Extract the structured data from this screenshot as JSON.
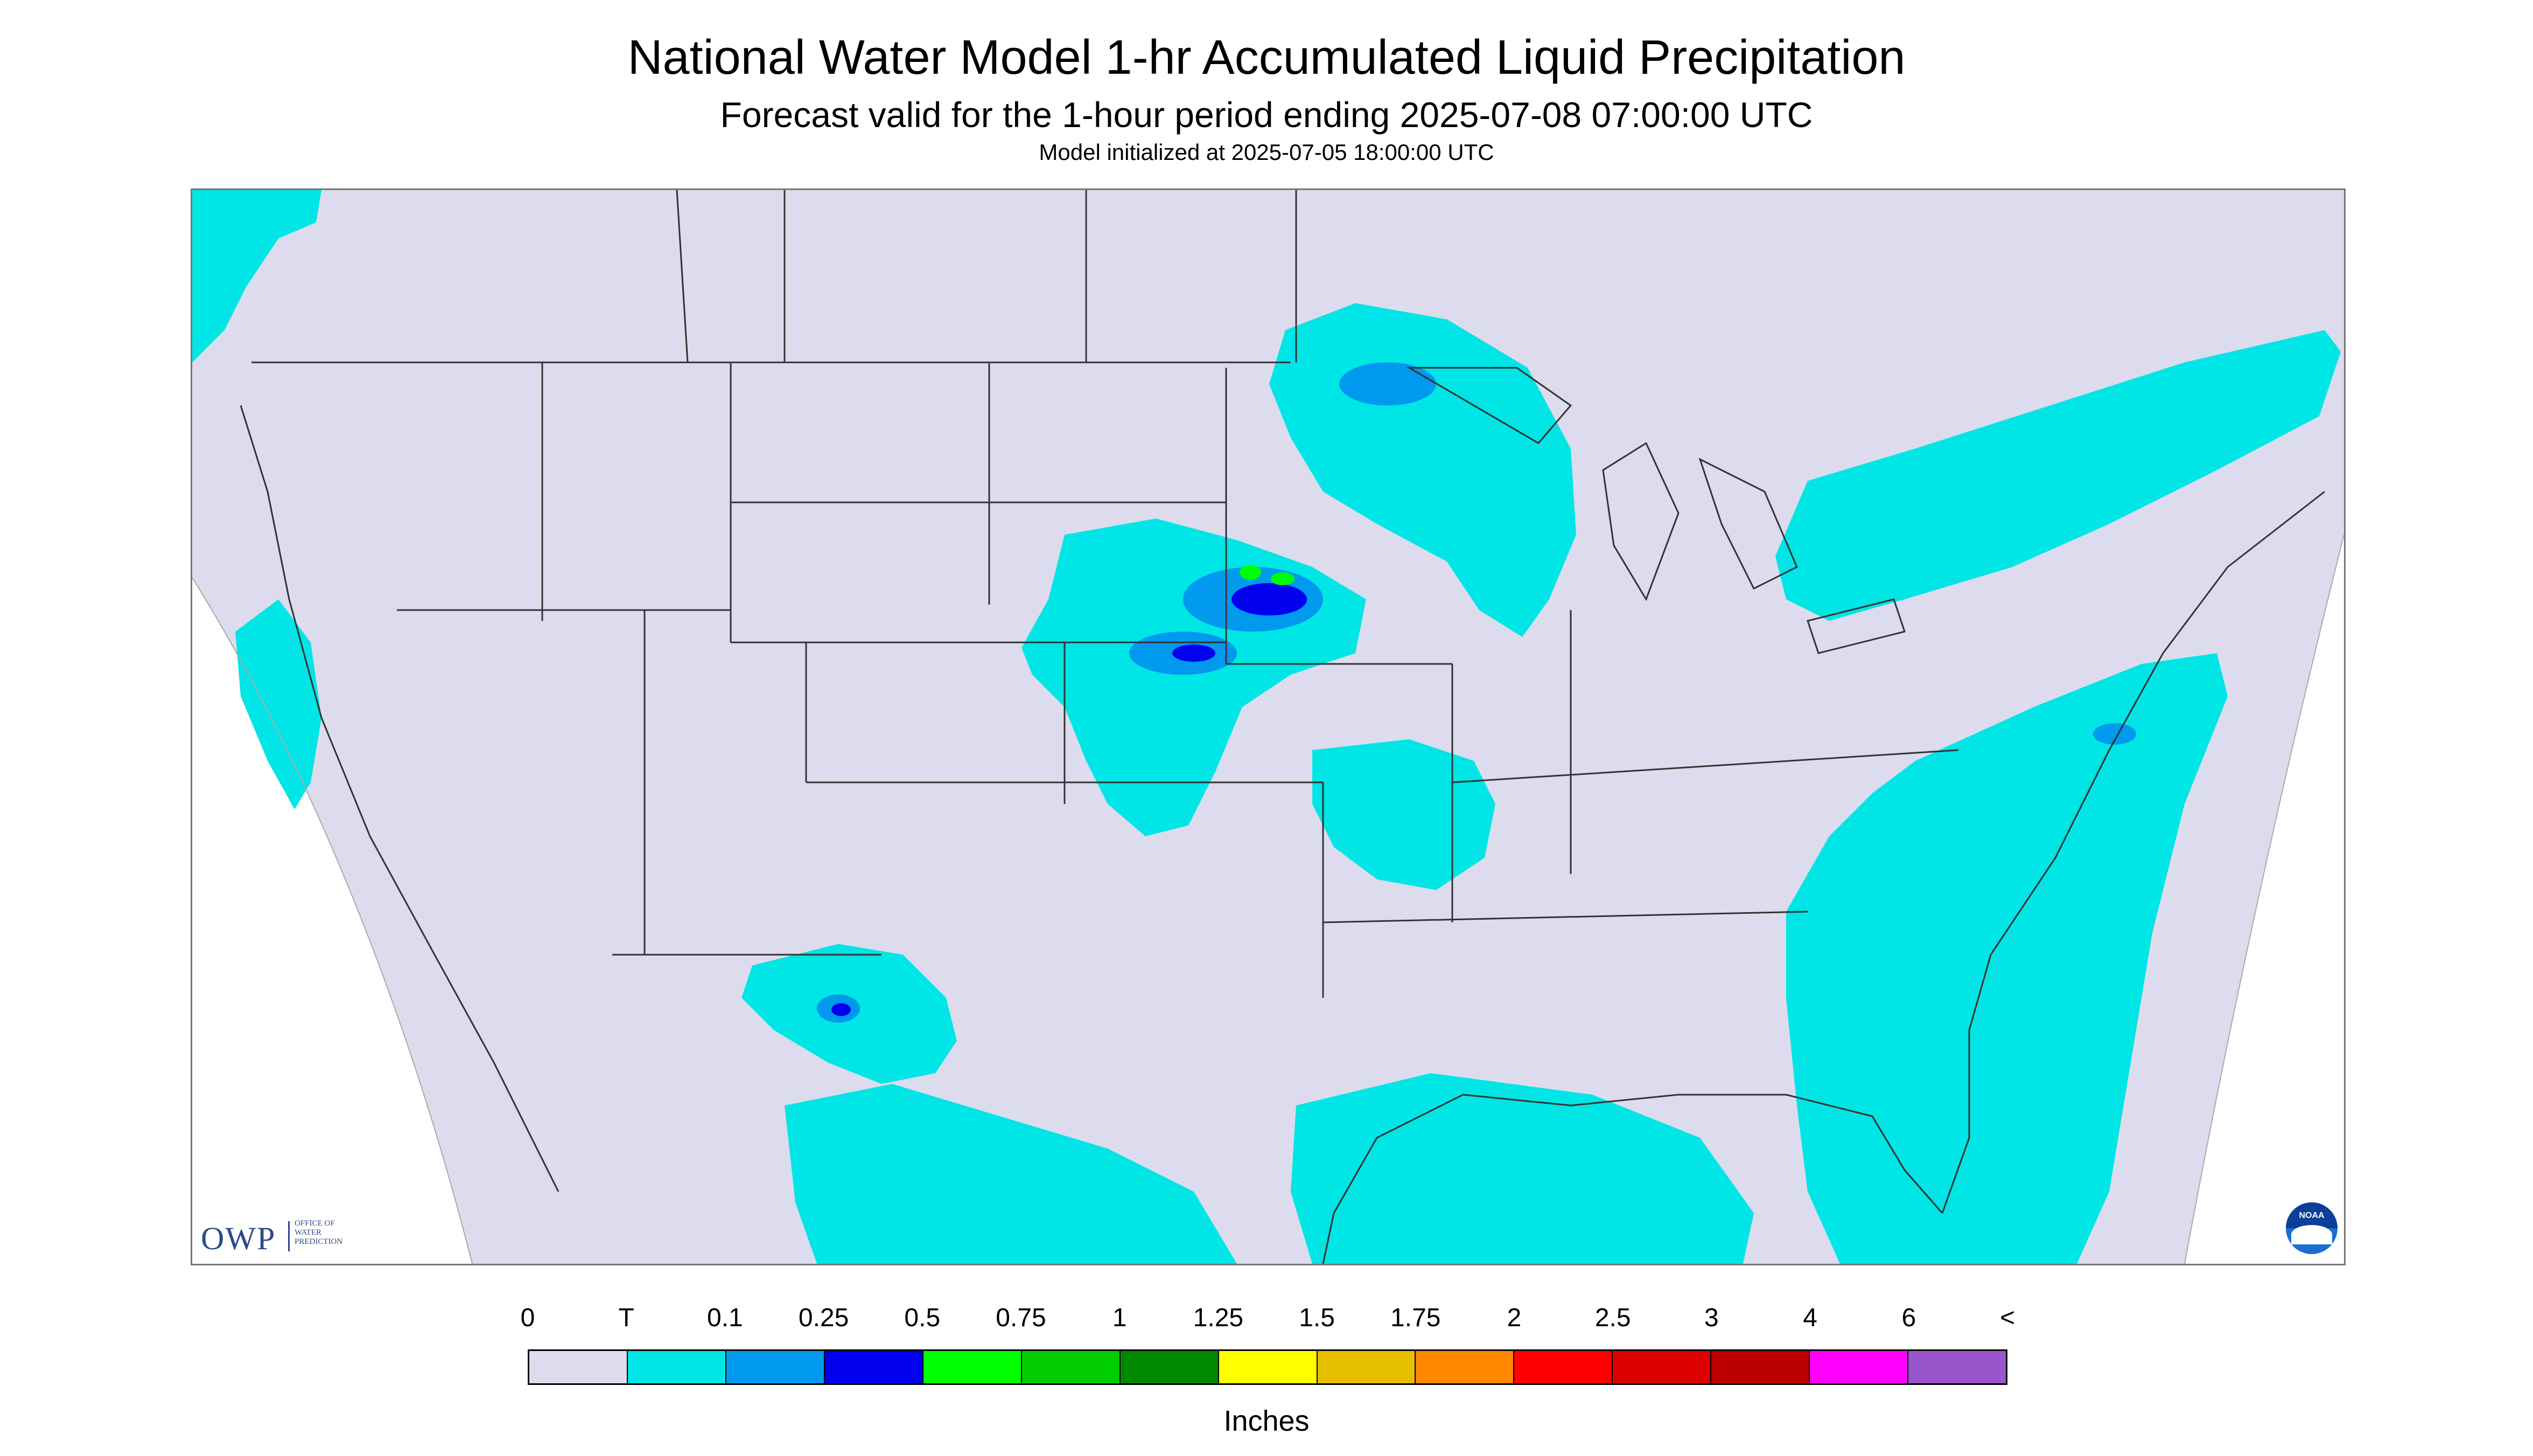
{
  "header": {
    "title": "National Water Model 1-hr Accumulated Liquid Precipitation",
    "subtitle": "Forecast valid for the 1-hour period ending 2025-07-08 07:00:00 UTC",
    "init": "Model initialized at 2025-07-05 18:00:00 UTC"
  },
  "map": {
    "background_color": "#dcdcee",
    "outside_color": "#ffffff",
    "boundary_color": "#333333",
    "precip_colors": {
      "trace": "#00e5e5",
      "tenth": "#0099ee",
      "quarter": "#0000ee",
      "half": "#00ff00",
      "three_quarter": "#00cc00"
    }
  },
  "logos": {
    "owp_abbrev": "OWP",
    "owp_name_line1": "OFFICE OF",
    "owp_name_line2": "WATER",
    "owp_name_line3": "PREDICTION",
    "noaa_icon": "noaa-emblem-icon",
    "noaa_text": "NOAA"
  },
  "legend": {
    "labels": [
      "0",
      "T",
      "0.1",
      "0.25",
      "0.5",
      "0.75",
      "1",
      "1.25",
      "1.5",
      "1.75",
      "2",
      "2.5",
      "3",
      "4",
      "6",
      "<"
    ],
    "colors": [
      "#dcdcee",
      "#00e5e5",
      "#0099ee",
      "#0000ee",
      "#00ff00",
      "#00cc00",
      "#008800",
      "#ffff00",
      "#e6bf00",
      "#ff8800",
      "#ff0000",
      "#dd0000",
      "#bb0000",
      "#ff00ff",
      "#9955cc"
    ],
    "units": "Inches"
  }
}
